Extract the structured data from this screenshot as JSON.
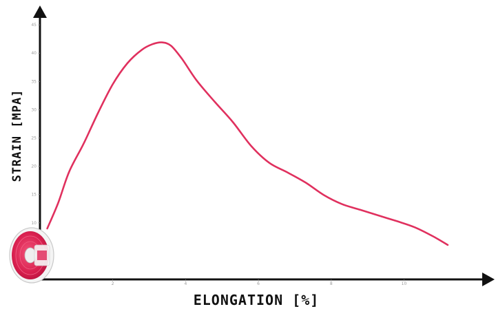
{
  "chart_data": {
    "type": "line",
    "title": "",
    "xlabel": "ELONGATION [%]",
    "ylabel": "STRAIN [MPA]",
    "xlim": [
      0,
      12
    ],
    "ylim": [
      0,
      45
    ],
    "x_ticks": [
      2,
      4,
      6,
      8,
      10
    ],
    "y_ticks": [
      10,
      15,
      20,
      25,
      30,
      35,
      40,
      45
    ],
    "grid": false,
    "legend": "none",
    "series": [
      {
        "color": "#e0305e",
        "x": [
          0.2,
          0.5,
          0.8,
          1.2,
          1.6,
          2.0,
          2.4,
          2.8,
          3.1,
          3.35,
          3.6,
          3.9,
          4.3,
          4.8,
          5.3,
          5.8,
          6.3,
          6.8,
          7.3,
          7.8,
          8.3,
          8.8,
          9.3,
          9.8,
          10.3,
          10.8,
          11.2
        ],
        "y": [
          9.0,
          13.5,
          19.0,
          24.0,
          29.5,
          34.5,
          38.2,
          40.6,
          41.6,
          41.9,
          41.3,
          39.0,
          35.2,
          31.4,
          27.8,
          23.6,
          20.6,
          18.9,
          17.1,
          14.9,
          13.3,
          12.3,
          11.3,
          10.3,
          9.2,
          7.6,
          6.1
        ]
      }
    ],
    "accent_color": "#e0305e",
    "decoration": "filament-spool-icon"
  }
}
